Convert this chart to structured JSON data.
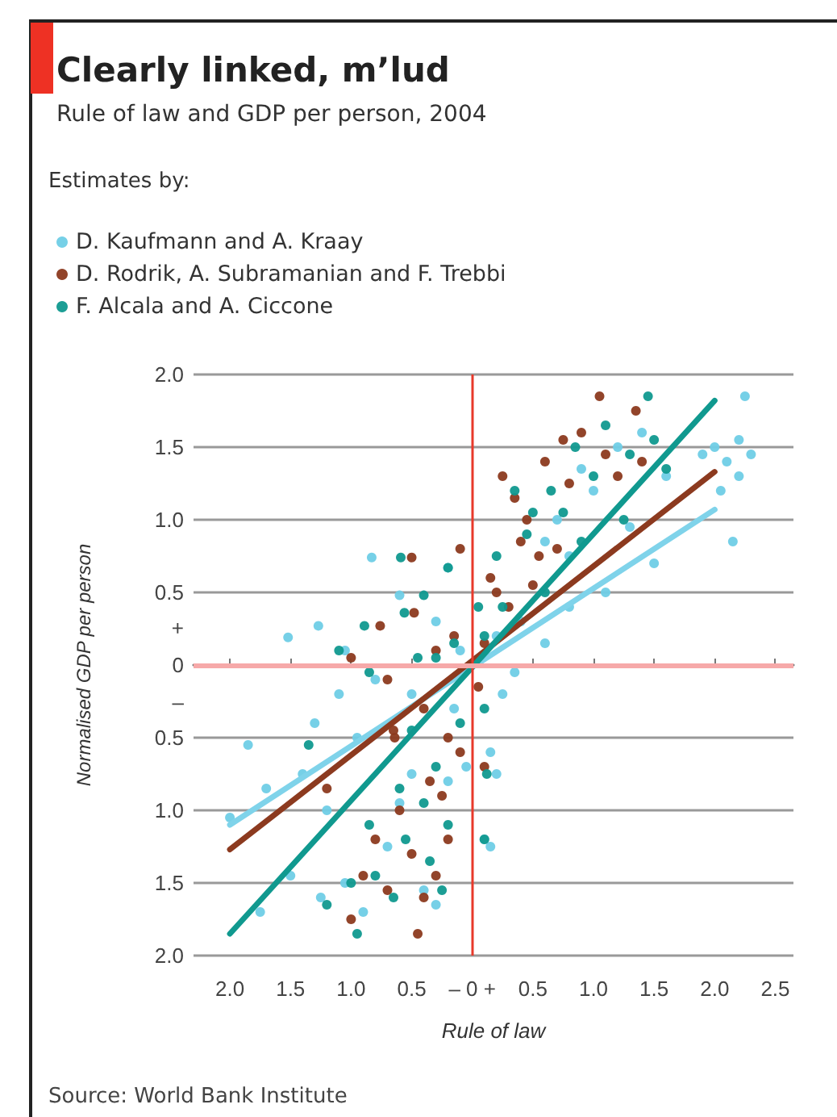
{
  "chart_data": {
    "type": "scatter",
    "title": "Clearly linked, m’lud",
    "subtitle": "Rule of law and GDP per person, 2004",
    "legend_title": "Estimates by:",
    "xlabel": "Rule of law",
    "ylabel": "Normalised GDP per person",
    "annotations": [
      "Source: World Bank Institute"
    ],
    "xlim": [
      -2.3,
      2.65
    ],
    "ylim": [
      -2.0,
      2.0
    ],
    "xticks": [
      {
        "value": -2,
        "label": "2.0"
      },
      {
        "value": -1.5,
        "label": "1.5"
      },
      {
        "value": -1,
        "label": "1.0"
      },
      {
        "value": -0.5,
        "label": "0.5"
      },
      {
        "value": 0,
        "label": "– 0 +"
      },
      {
        "value": 0.5,
        "label": "0.5"
      },
      {
        "value": 1,
        "label": "1.0"
      },
      {
        "value": 1.5,
        "label": "1.5"
      },
      {
        "value": 2,
        "label": "2.0"
      },
      {
        "value": 2.5,
        "label": "2.5"
      }
    ],
    "yticks": [
      {
        "value": -2,
        "label": "2.0"
      },
      {
        "value": -1.5,
        "label": "1.5"
      },
      {
        "value": -1,
        "label": "1.0"
      },
      {
        "value": -0.5,
        "label": "0.5"
      },
      {
        "value": 0,
        "label": "+\n0\n–"
      },
      {
        "value": 0.5,
        "label": "0.5"
      },
      {
        "value": 1,
        "label": "1.0"
      },
      {
        "value": 1.5,
        "label": "1.5"
      },
      {
        "value": 2,
        "label": "2.0"
      }
    ],
    "grid": "y",
    "legend": "top left",
    "marker": "circle",
    "ref_lines": [
      {
        "axis": "x",
        "value": 0,
        "color": "#e8392b"
      },
      {
        "axis": "y",
        "value": 0,
        "color": "#f6a9a9"
      }
    ],
    "series": [
      {
        "name": "D. Kaufmann and A. Kraay",
        "color": "#6fcde6",
        "x": [
          2.25,
          2.2,
          2.3,
          2.1,
          2.0,
          1.9,
          2.05,
          2.2,
          2.15,
          1.6,
          1.4,
          1.2,
          1.0,
          0.9,
          0.7,
          0.6,
          1.3,
          0.8,
          1.1,
          1.5,
          0.4,
          0.6,
          0.2,
          0.8,
          0.35,
          0.25,
          0.15,
          0.2,
          0.1,
          0.15,
          -0.1,
          -0.2,
          -0.83,
          -0.6,
          -1.52,
          -1.27,
          -1.05,
          -0.8,
          -0.5,
          -0.3,
          -0.15,
          -2.0,
          -1.85,
          -1.7,
          -1.4,
          -1.2,
          -1.5,
          -1.05,
          -0.9,
          -0.7,
          -0.4,
          -0.3,
          -0.5,
          -0.6,
          -0.95,
          -1.1,
          -0.2,
          -1.3,
          -0.05,
          -1.25,
          -1.75
        ],
        "values": [
          1.85,
          1.55,
          1.45,
          1.4,
          1.5,
          1.45,
          1.2,
          1.3,
          0.85,
          1.3,
          1.6,
          1.5,
          1.2,
          1.35,
          1.0,
          0.85,
          0.95,
          0.75,
          0.5,
          0.7,
          0.3,
          0.15,
          0.2,
          0.4,
          -0.05,
          -0.2,
          -0.6,
          -0.75,
          -1.2,
          -1.25,
          0.1,
          0.67,
          0.74,
          0.48,
          0.19,
          0.27,
          0.1,
          -0.1,
          -0.2,
          0.3,
          -0.3,
          -1.05,
          -0.55,
          -0.85,
          -0.75,
          -1.0,
          -1.45,
          -1.5,
          -1.7,
          -1.25,
          -1.55,
          -1.65,
          -0.75,
          -0.95,
          -0.5,
          -0.2,
          -0.8,
          -0.4,
          -0.7,
          -1.6,
          -1.7
        ]
      },
      {
        "name": "D. Rodrik, A. Subramanian and F. Trebbi",
        "color": "#8c3a1f",
        "x": [
          1.05,
          1.35,
          0.75,
          0.9,
          1.1,
          0.6,
          0.25,
          0.35,
          0.45,
          0.4,
          0.55,
          0.7,
          0.2,
          0.3,
          0.1,
          0.15,
          0.5,
          1.4,
          1.2,
          0.8,
          -0.1,
          -0.5,
          -0.76,
          -0.48,
          -0.3,
          -0.15,
          -1.0,
          -0.7,
          -0.4,
          -0.2,
          -0.64,
          -0.35,
          -0.25,
          -0.6,
          -0.8,
          -0.5,
          -0.3,
          -0.9,
          -0.7,
          -0.4,
          -1.0,
          -0.45,
          -0.1,
          -1.2,
          -0.2,
          0.05,
          0.1,
          -0.65
        ],
        "values": [
          1.85,
          1.75,
          1.55,
          1.6,
          1.45,
          1.4,
          1.3,
          1.15,
          1.0,
          0.85,
          0.75,
          0.8,
          0.5,
          0.4,
          0.15,
          0.6,
          0.55,
          1.4,
          1.3,
          1.25,
          0.8,
          0.74,
          0.27,
          0.36,
          0.1,
          0.2,
          0.05,
          -0.1,
          -0.3,
          -0.5,
          -0.5,
          -0.8,
          -0.9,
          -1.0,
          -1.2,
          -1.3,
          -1.45,
          -1.45,
          -1.55,
          -1.6,
          -1.75,
          -1.85,
          -0.6,
          -0.85,
          -1.2,
          -0.15,
          -0.7,
          -0.45
        ]
      },
      {
        "name": "F. Alcala and A. Ciccone",
        "color": "#10998f",
        "x": [
          1.45,
          1.1,
          0.85,
          1.3,
          1.5,
          1.0,
          0.65,
          0.45,
          0.5,
          0.35,
          0.75,
          1.25,
          0.05,
          0.2,
          0.25,
          0.6,
          0.1,
          1.6,
          0.9,
          -0.59,
          -0.89,
          -0.56,
          -0.4,
          -0.2,
          -1.1,
          -0.3,
          -0.85,
          -0.15,
          -0.45,
          -0.5,
          -0.3,
          -0.4,
          -0.6,
          -0.85,
          -0.55,
          -0.35,
          -0.8,
          -1.0,
          -0.65,
          -0.25,
          -1.2,
          -0.95,
          -0.2,
          0.1,
          0.12,
          0.1,
          -0.1,
          -1.35
        ],
        "values": [
          1.85,
          1.65,
          1.5,
          1.45,
          1.55,
          1.3,
          1.2,
          0.9,
          1.05,
          1.2,
          1.05,
          1.0,
          0.4,
          0.75,
          0.4,
          0.5,
          0.2,
          1.35,
          0.85,
          0.74,
          0.27,
          0.36,
          0.48,
          0.67,
          0.1,
          0.05,
          -0.05,
          0.15,
          0.05,
          -0.45,
          -0.7,
          -0.95,
          -0.85,
          -1.1,
          -1.2,
          -1.35,
          -1.45,
          -1.5,
          -1.6,
          -1.55,
          -1.65,
          -1.85,
          -1.1,
          -0.3,
          -0.75,
          -1.2,
          -0.4,
          -0.55
        ]
      },
      {
        "type": "line",
        "color": "#7fd3ea",
        "marker": "none",
        "x": [
          -2.0,
          2.0
        ],
        "values": [
          -1.1,
          1.07
        ]
      },
      {
        "type": "line",
        "color": "#8c3a1f",
        "marker": "none",
        "x": [
          -2.0,
          2.0
        ],
        "values": [
          -1.27,
          1.33
        ]
      },
      {
        "type": "line",
        "color": "#10998f",
        "marker": "none",
        "x": [
          -2.0,
          2.0
        ],
        "values": [
          -1.85,
          1.82
        ]
      }
    ]
  }
}
